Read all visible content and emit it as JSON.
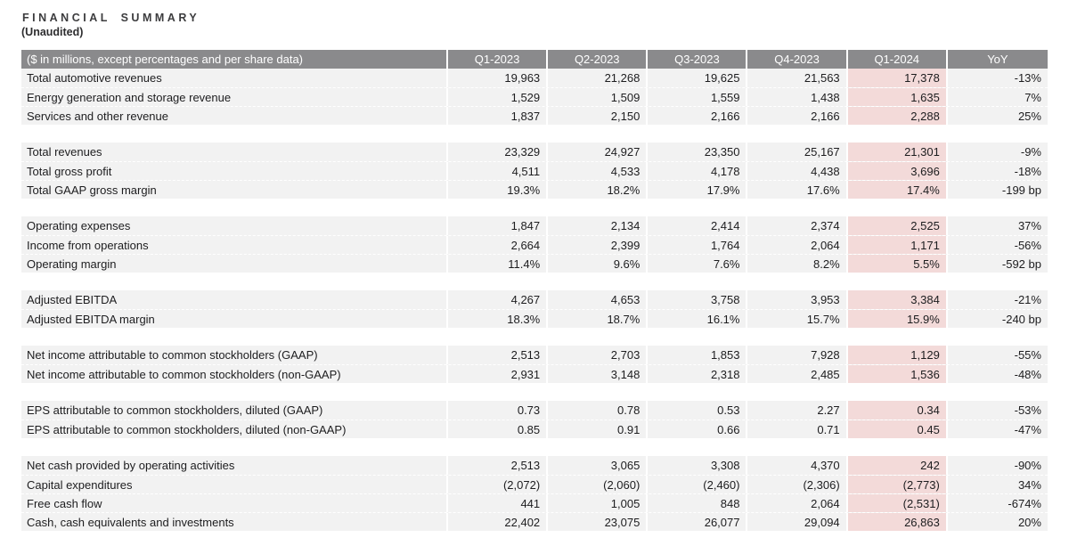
{
  "page": {
    "title": "FINANCIAL SUMMARY",
    "subtitle": "(Unaudited)"
  },
  "table": {
    "header": {
      "label": "($ in millions, except percentages and per share data)",
      "columns": [
        "Q1-2023",
        "Q2-2023",
        "Q3-2023",
        "Q4-2023",
        "Q1-2024",
        "YoY"
      ]
    },
    "highlight_column": "Q1-2024",
    "highlight_column_index": 4,
    "colors": {
      "header_bg": "#8a8a8c",
      "header_text": "#ffffff",
      "row_bg": "#f2f2f2",
      "highlight_bg": "#f3dad9",
      "text": "#1d1d1f"
    },
    "sections": [
      {
        "rows": [
          {
            "label": "Total automotive revenues",
            "values": [
              "19,963",
              "21,268",
              "19,625",
              "21,563",
              "17,378",
              "-13%"
            ]
          },
          {
            "label": "Energy generation and storage revenue",
            "values": [
              "1,529",
              "1,509",
              "1,559",
              "1,438",
              "1,635",
              "7%"
            ]
          },
          {
            "label": "Services and other revenue",
            "values": [
              "1,837",
              "2,150",
              "2,166",
              "2,166",
              "2,288",
              "25%"
            ]
          }
        ]
      },
      {
        "rows": [
          {
            "label": "Total revenues",
            "values": [
              "23,329",
              "24,927",
              "23,350",
              "25,167",
              "21,301",
              "-9%"
            ]
          },
          {
            "label": "Total gross profit",
            "values": [
              "4,511",
              "4,533",
              "4,178",
              "4,438",
              "3,696",
              "-18%"
            ]
          },
          {
            "label": "Total GAAP gross margin",
            "values": [
              "19.3%",
              "18.2%",
              "17.9%",
              "17.6%",
              "17.4%",
              "-199 bp"
            ]
          }
        ]
      },
      {
        "rows": [
          {
            "label": "Operating expenses",
            "values": [
              "1,847",
              "2,134",
              "2,414",
              "2,374",
              "2,525",
              "37%"
            ]
          },
          {
            "label": "Income from operations",
            "values": [
              "2,664",
              "2,399",
              "1,764",
              "2,064",
              "1,171",
              "-56%"
            ]
          },
          {
            "label": "Operating margin",
            "values": [
              "11.4%",
              "9.6%",
              "7.6%",
              "8.2%",
              "5.5%",
              "-592 bp"
            ]
          }
        ]
      },
      {
        "rows": [
          {
            "label": "Adjusted EBITDA",
            "values": [
              "4,267",
              "4,653",
              "3,758",
              "3,953",
              "3,384",
              "-21%"
            ]
          },
          {
            "label": "Adjusted EBITDA margin",
            "values": [
              "18.3%",
              "18.7%",
              "16.1%",
              "15.7%",
              "15.9%",
              "-240 bp"
            ]
          }
        ]
      },
      {
        "rows": [
          {
            "label": "Net income attributable to common stockholders (GAAP)",
            "values": [
              "2,513",
              "2,703",
              "1,853",
              "7,928",
              "1,129",
              "-55%"
            ]
          },
          {
            "label": "Net income attributable to common stockholders (non-GAAP)",
            "values": [
              "2,931",
              "3,148",
              "2,318",
              "2,485",
              "1,536",
              "-48%"
            ]
          }
        ]
      },
      {
        "rows": [
          {
            "label": "EPS attributable to common stockholders, diluted (GAAP)",
            "values": [
              "0.73",
              "0.78",
              "0.53",
              "2.27",
              "0.34",
              "-53%"
            ]
          },
          {
            "label": "EPS attributable to common stockholders, diluted (non-GAAP)",
            "values": [
              "0.85",
              "0.91",
              "0.66",
              "0.71",
              "0.45",
              "-47%"
            ]
          }
        ]
      },
      {
        "rows": [
          {
            "label": "Net cash provided by operating activities",
            "values": [
              "2,513",
              "3,065",
              "3,308",
              "4,370",
              "242",
              "-90%"
            ]
          },
          {
            "label": "Capital expenditures",
            "values": [
              "(2,072)",
              "(2,060)",
              "(2,460)",
              "(2,306)",
              "(2,773)",
              "34%"
            ]
          },
          {
            "label": "Free cash flow",
            "values": [
              "441",
              "1,005",
              "848",
              "2,064",
              "(2,531)",
              "-674%"
            ]
          },
          {
            "label": "Cash, cash equivalents and investments",
            "values": [
              "22,402",
              "23,075",
              "26,077",
              "29,094",
              "26,863",
              "20%"
            ]
          }
        ]
      }
    ]
  }
}
